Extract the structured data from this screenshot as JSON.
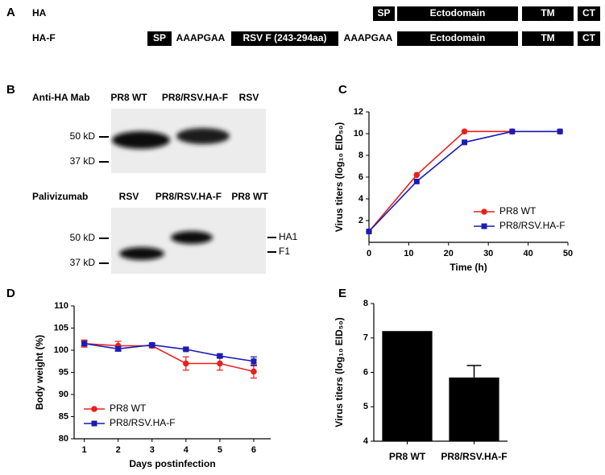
{
  "panel_labels": [
    "A",
    "B",
    "C",
    "D",
    "E"
  ],
  "diagram": {
    "rows": [
      {
        "label": "HA",
        "segments": [
          "SP",
          "Ectodomain",
          "TM",
          "CT"
        ]
      },
      {
        "label": "HA-F",
        "segments": [
          "SP",
          "AAAPGAA",
          "RSV F (243-294aa)",
          "AAAPGAA",
          "Ectodomain",
          "TM",
          "CT"
        ]
      }
    ]
  },
  "blots": [
    {
      "antibody": "Anti-HA Mab",
      "lanes": [
        "PR8 WT",
        "PR8/RSV.HA-F",
        "RSV"
      ],
      "markers": [
        "50 kD",
        "37 kD"
      ]
    },
    {
      "antibody": "Palivizumab",
      "lanes": [
        "RSV",
        "PR8/RSV.HA-F",
        "PR8 WT"
      ],
      "markers": [
        "50 kD",
        "37 kD"
      ],
      "bands": [
        "HA1",
        "F1"
      ]
    }
  ],
  "chart_data": [
    {
      "type": "line",
      "xlabel": "Time (h)",
      "ylabel": "Virus titers (log₁₀ EID₅₀)",
      "x": [
        0,
        12,
        24,
        36,
        48
      ],
      "xlim": [
        0,
        50
      ],
      "xticks": [
        0,
        10,
        20,
        30,
        40,
        50
      ],
      "ylim": [
        0,
        12
      ],
      "yticks": [
        2,
        4,
        6,
        8,
        10,
        12
      ],
      "legend": "right",
      "series": [
        {
          "name": "PR8 WT",
          "color": "#e8201e",
          "marker": "circle",
          "values": [
            1,
            6.2,
            10.2,
            10.2,
            10.2
          ]
        },
        {
          "name": "PR8/RSV.HA-F",
          "color": "#1c1cb4",
          "marker": "square",
          "values": [
            1,
            5.6,
            9.2,
            10.2,
            10.2
          ]
        }
      ]
    },
    {
      "type": "line",
      "xlabel": "Days postinfection",
      "ylabel": "Body weight (%)",
      "x": [
        1,
        2,
        3,
        4,
        5,
        6
      ],
      "xlim": [
        0.7,
        6.5
      ],
      "xticks": [
        1,
        2,
        3,
        4,
        5,
        6
      ],
      "ylim": [
        80,
        110
      ],
      "yticks": [
        80,
        85,
        90,
        95,
        100,
        105,
        110
      ],
      "legend": "lower left",
      "series": [
        {
          "name": "PR8 WT",
          "color": "#e8201e",
          "marker": "circle",
          "values": [
            101.5,
            101,
            101,
            97,
            97,
            95.2
          ],
          "errors": [
            0.8,
            1,
            0.5,
            1.5,
            1.5,
            1.5
          ]
        },
        {
          "name": "PR8/RSV.HA-F",
          "color": "#1c1cb4",
          "marker": "square",
          "values": [
            101.5,
            100.3,
            101.2,
            100.2,
            98.7,
            97.5
          ],
          "errors": [
            0.5,
            0.5,
            0.3,
            0.3,
            0.4,
            1
          ]
        }
      ]
    },
    {
      "type": "bar",
      "ylabel": "Virus titers (log₁₀ EID₅₀)",
      "categories": [
        "PR8 WT",
        "PR8/RSV.HA-F"
      ],
      "values": [
        7.2,
        5.85
      ],
      "errors": [
        0,
        0.35
      ],
      "color": "#000000",
      "ylim": [
        4,
        8
      ],
      "yticks": [
        4,
        5,
        6,
        7,
        8
      ]
    }
  ]
}
